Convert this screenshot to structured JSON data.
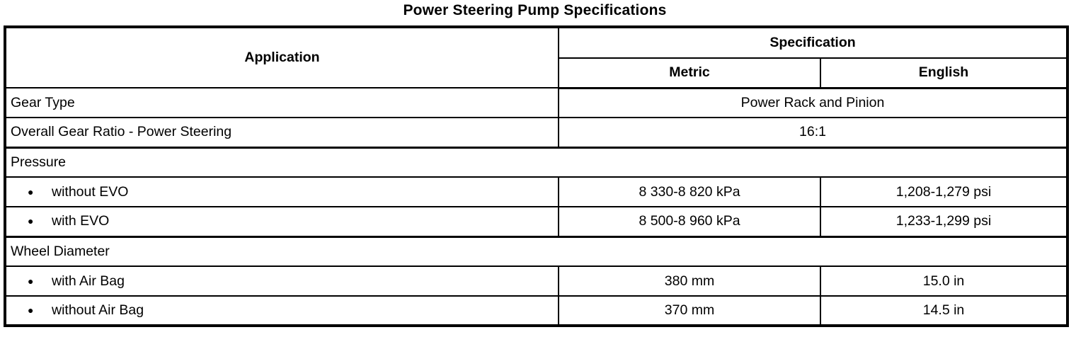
{
  "title": "Power Steering Pump Specifications",
  "table": {
    "headers": {
      "application": "Application",
      "specification": "Specification",
      "metric": "Metric",
      "english": "English"
    },
    "bullet_glyph": "●",
    "rows": [
      {
        "type": "span-value",
        "label": "Gear Type",
        "value": "Power Rack and Pinion"
      },
      {
        "type": "span-value",
        "label": "Overall Gear Ratio - Power Steering",
        "value": "16:1"
      },
      {
        "type": "section",
        "label": "Pressure"
      },
      {
        "type": "bullet",
        "label": "without EVO",
        "metric": "8 330-8 820 kPa",
        "english": "1,208-1,279 psi"
      },
      {
        "type": "bullet",
        "label": "with EVO",
        "metric": "8 500-8 960 kPa",
        "english": "1,233-1,299 psi"
      },
      {
        "type": "section",
        "label": "Wheel Diameter"
      },
      {
        "type": "bullet",
        "label": "with Air Bag",
        "metric": "380 mm",
        "english": "15.0 in"
      },
      {
        "type": "bullet",
        "label": "without Air Bag",
        "metric": "370 mm",
        "english": "14.5 in"
      }
    ]
  },
  "colors": {
    "text": "#000000",
    "background": "#ffffff",
    "border": "#000000"
  }
}
